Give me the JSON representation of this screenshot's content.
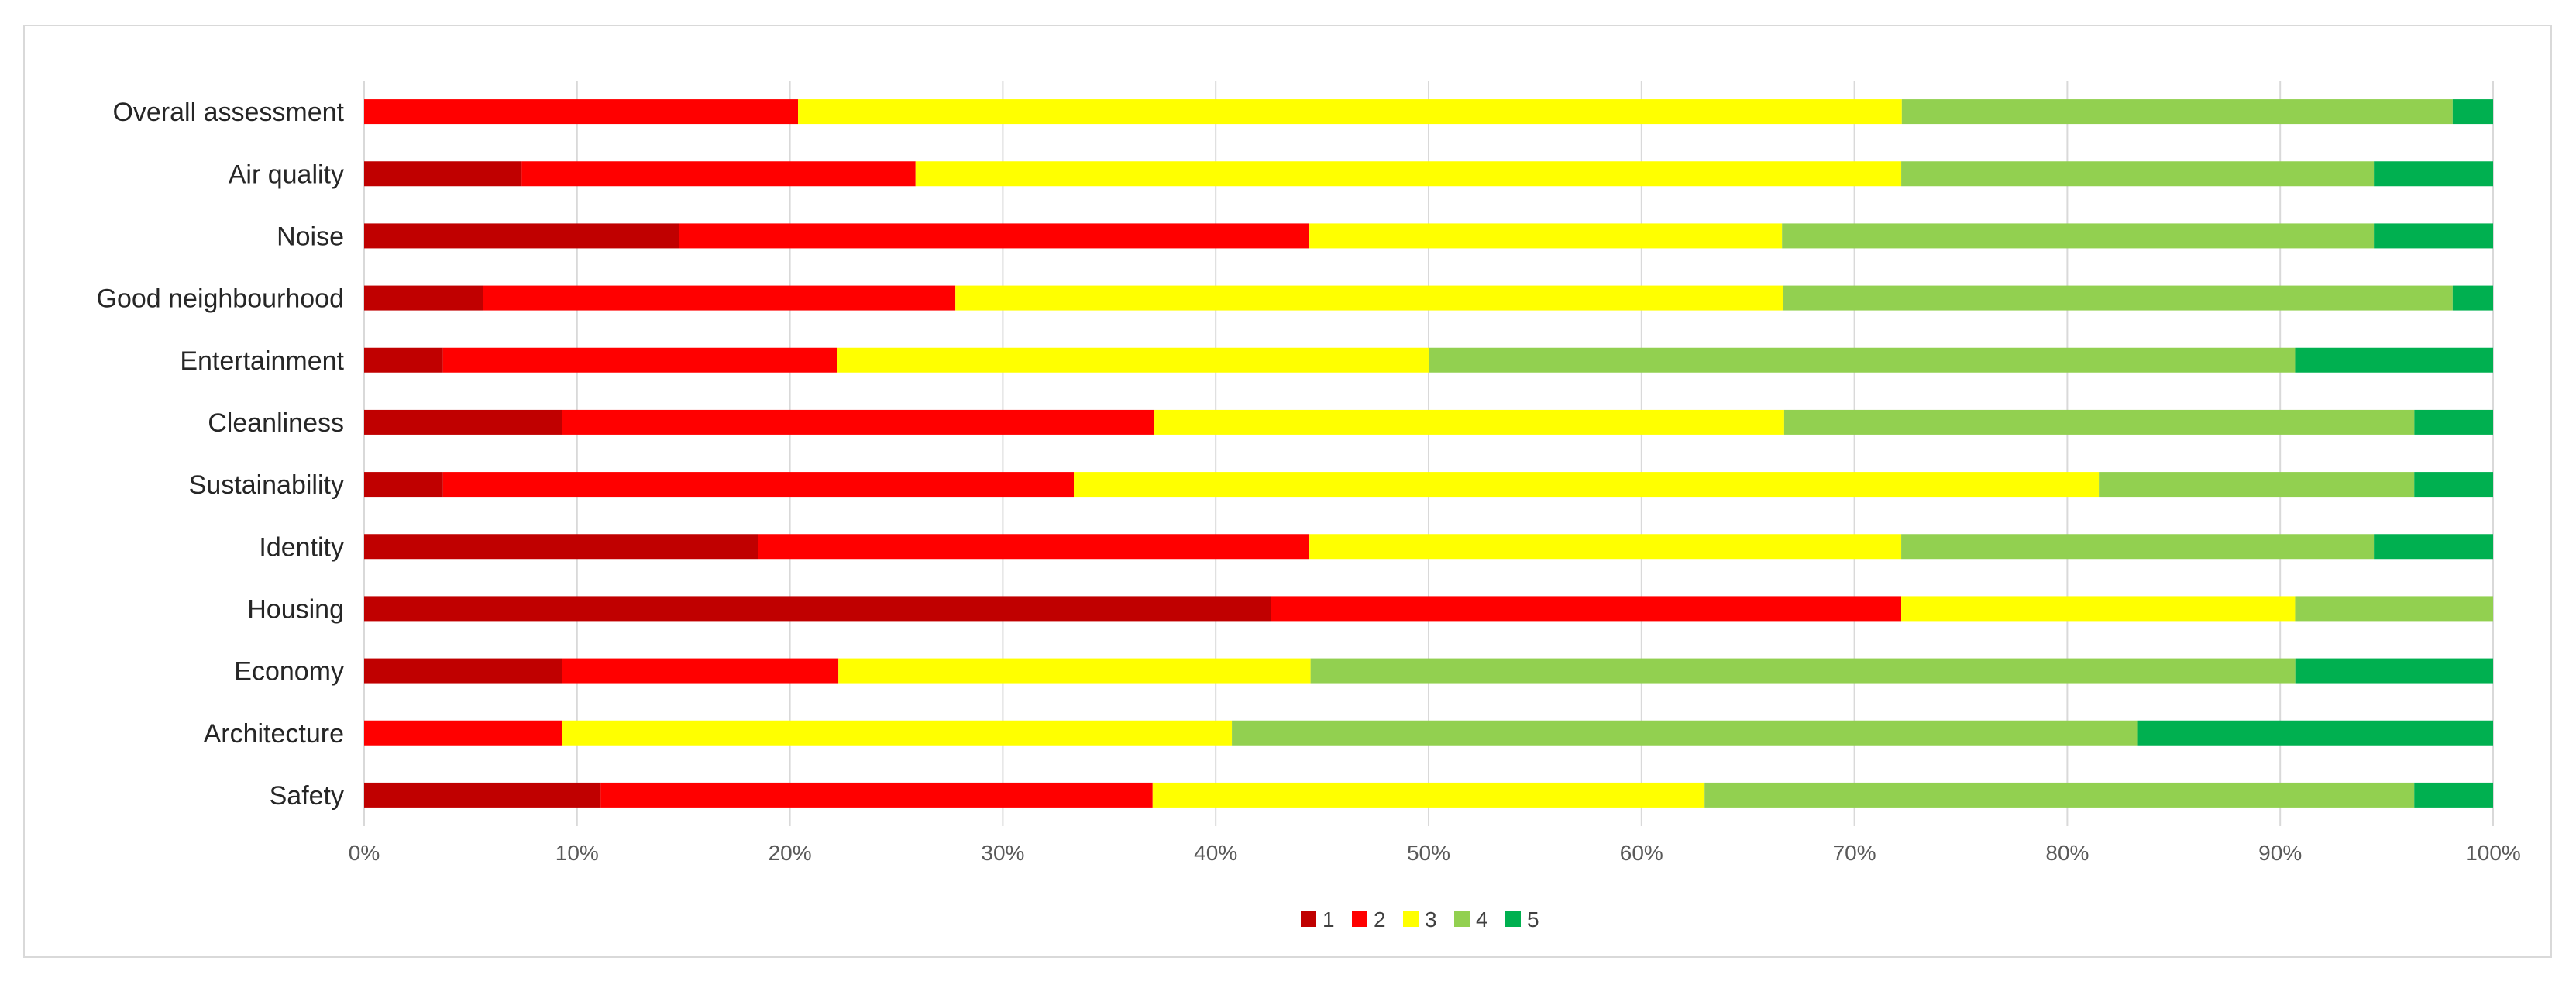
{
  "chart_data": {
    "type": "bar",
    "orientation": "horizontal",
    "stacked": "percent",
    "categories": [
      "Overall assessment",
      "Air quality",
      "Noise",
      "Good neighbourhood",
      "Entertainment",
      "Cleanliness",
      "Sustainability",
      "Identity",
      "Housing",
      "Economy",
      "Architecture",
      "Safety"
    ],
    "series": [
      {
        "name": "1",
        "color": "#c00000",
        "values": [
          0,
          7.4,
          14.8,
          5.6,
          3.7,
          9.3,
          3.7,
          18.5,
          42.6,
          9.3,
          0,
          11.1
        ]
      },
      {
        "name": "2",
        "color": "#ff0000",
        "values": [
          20.4,
          18.5,
          29.6,
          22.2,
          18.5,
          27.8,
          29.6,
          25.9,
          29.6,
          13.0,
          9.3,
          25.9
        ]
      },
      {
        "name": "3",
        "color": "#ffff00",
        "values": [
          51.9,
          46.3,
          22.2,
          38.9,
          27.8,
          29.6,
          48.1,
          27.8,
          18.5,
          22.2,
          31.5,
          25.9
        ]
      },
      {
        "name": "4",
        "color": "#92d050",
        "values": [
          25.9,
          22.2,
          27.8,
          31.5,
          40.7,
          29.6,
          14.8,
          22.2,
          9.3,
          46.3,
          42.6,
          33.3
        ]
      },
      {
        "name": "5",
        "color": "#00b050",
        "values": [
          1.9,
          5.6,
          5.6,
          1.9,
          9.3,
          3.7,
          3.7,
          5.6,
          0,
          9.3,
          16.7,
          3.7
        ]
      }
    ],
    "xlim": [
      0,
      100
    ],
    "x_ticks": [
      "0%",
      "10%",
      "20%",
      "30%",
      "40%",
      "50%",
      "60%",
      "70%",
      "80%",
      "90%",
      "100%"
    ],
    "grid": true,
    "legend_position": "bottom",
    "title": "",
    "xlabel": "",
    "ylabel": ""
  }
}
